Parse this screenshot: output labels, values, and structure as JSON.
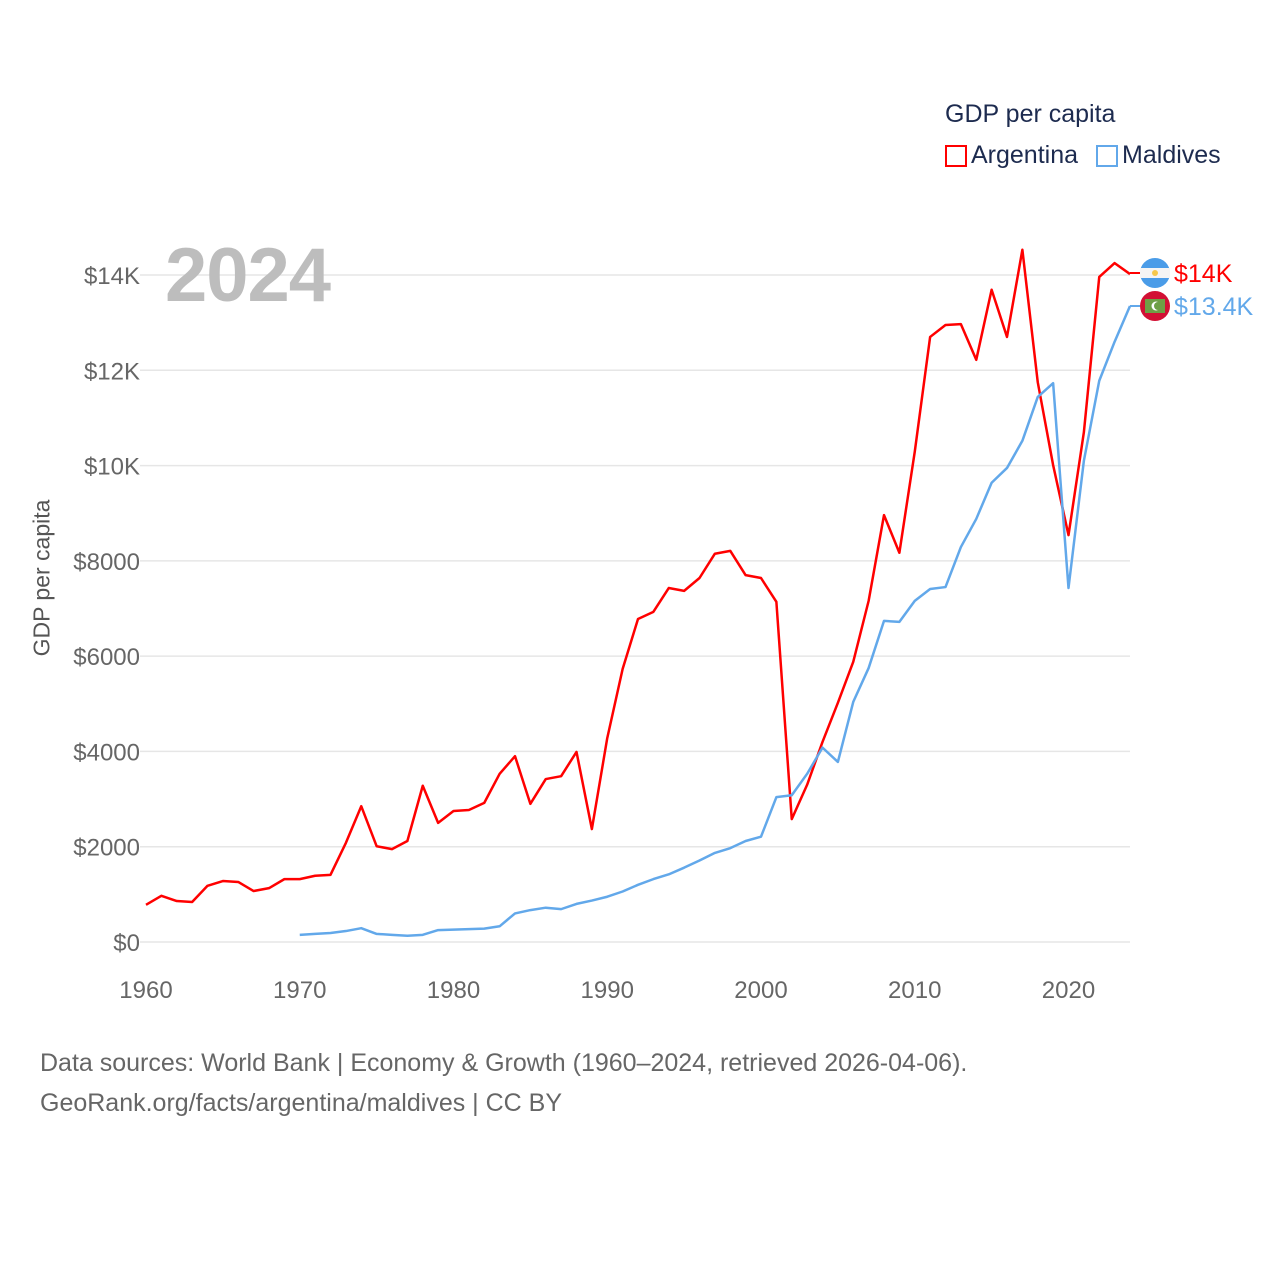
{
  "chart_data": {
    "type": "line",
    "title": "GDP per capita",
    "xlabel": "",
    "ylabel": "GDP per capita",
    "current_year_label": "2024",
    "xlim": [
      1960,
      2024
    ],
    "ylim": [
      0,
      14000
    ],
    "grid": true,
    "legend_placement": "top-right",
    "x_ticks": [
      "1960",
      "1970",
      "1980",
      "1990",
      "2000",
      "2010",
      "2020"
    ],
    "y_ticks": [
      {
        "value": 0,
        "label": "$0"
      },
      {
        "value": 2000,
        "label": "$2000"
      },
      {
        "value": 4000,
        "label": "$4000"
      },
      {
        "value": 6000,
        "label": "$6000"
      },
      {
        "value": 8000,
        "label": "$8000"
      },
      {
        "value": 10000,
        "label": "$10K"
      },
      {
        "value": 12000,
        "label": "$12K"
      },
      {
        "value": 14000,
        "label": "$14K"
      }
    ],
    "series": [
      {
        "name": "Argentina",
        "color": "#ff0000",
        "end_label": "$14K",
        "flag": "argentina-flag-icon",
        "start_year": 1960,
        "values": [
          780,
          970,
          860,
          840,
          1180,
          1280,
          1260,
          1070,
          1130,
          1320,
          1320,
          1390,
          1410,
          2080,
          2850,
          2010,
          1950,
          2120,
          3280,
          2500,
          2750,
          2770,
          2920,
          3530,
          3900,
          2900,
          3420,
          3480,
          3990,
          2370,
          4280,
          5730,
          6780,
          6930,
          7430,
          7370,
          7640,
          8150,
          8210,
          7700,
          7640,
          7140,
          2580,
          3300,
          4200,
          5020,
          5880,
          7160,
          8960,
          8170,
          10290,
          12700,
          12950,
          12970,
          12220,
          13690,
          12700,
          14530,
          11750,
          10010,
          8540,
          10700,
          13960,
          14250,
          14020
        ]
      },
      {
        "name": "Maldives",
        "color": "#62a8ea",
        "end_label": "$13.4K",
        "flag": "maldives-flag-icon",
        "start_year": 1970,
        "values": [
          150,
          170,
          190,
          230,
          290,
          170,
          150,
          130,
          150,
          250,
          260,
          270,
          280,
          330,
          600,
          670,
          720,
          690,
          800,
          870,
          950,
          1060,
          1200,
          1320,
          1420,
          1560,
          1710,
          1870,
          1970,
          2120,
          2210,
          3040,
          3080,
          3530,
          4080,
          3780,
          5040,
          5750,
          6740,
          6720,
          7160,
          7410,
          7450,
          8290,
          8880,
          9640,
          9950,
          10520,
          11440,
          11730,
          7430,
          10100,
          11780,
          12600,
          13350
        ]
      }
    ]
  },
  "footer": {
    "line1": "Data sources: World Bank | Economy & Growth (1960–2024, retrieved 2026-04-06).",
    "line2": "GeoRank.org/facts/argentina/maldives | CC BY"
  }
}
